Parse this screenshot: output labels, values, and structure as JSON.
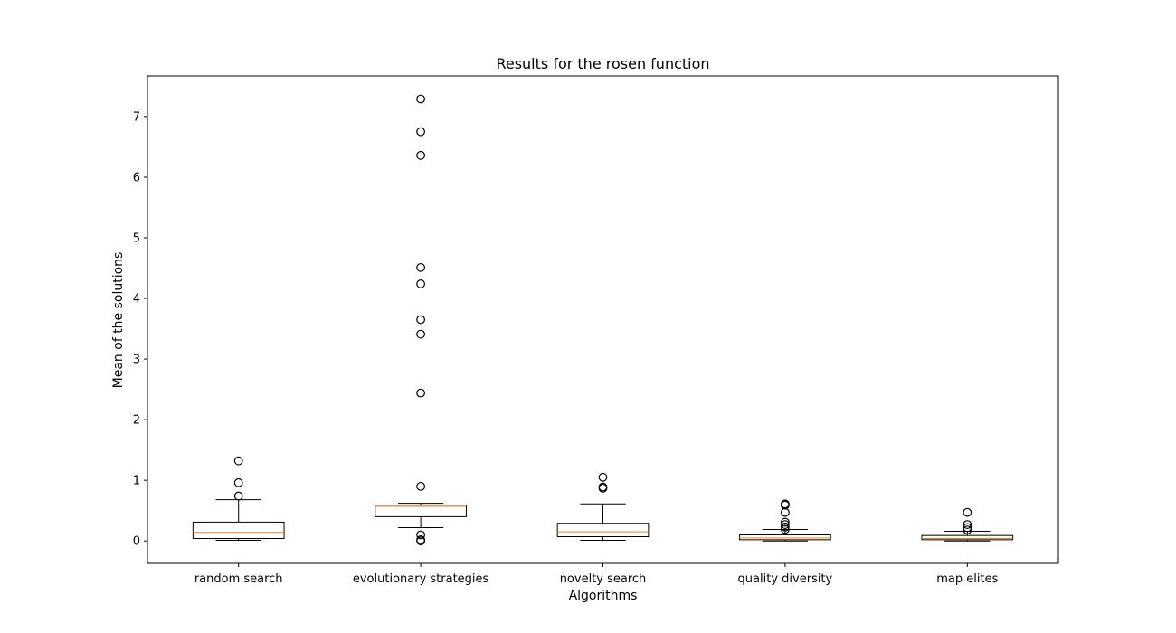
{
  "chart_data": {
    "type": "boxplot",
    "title": "Results for the rosen function",
    "xlabel": "Algorithms",
    "ylabel": "Mean of the solutions",
    "ylim": [
      -0.37,
      7.67
    ],
    "yticks": [
      0,
      1,
      2,
      3,
      4,
      5,
      6,
      7
    ],
    "grid": false,
    "colors": {
      "box": "#000000",
      "median": "#ff7f0e",
      "background": "#ffffff"
    },
    "categories": [
      "random search",
      "evolutionary strategies",
      "novelty search",
      "quality diversity",
      "map elites"
    ],
    "boxes": [
      {
        "label": "random search",
        "whisker_low": 0.01,
        "q1": 0.04,
        "median": 0.14,
        "q3": 0.31,
        "whisker_high": 0.68,
        "fliers": [
          0.74,
          0.96,
          1.32
        ]
      },
      {
        "label": "evolutionary strategies",
        "whisker_low": 0.22,
        "q1": 0.4,
        "median": 0.57,
        "q3": 0.59,
        "whisker_high": 0.62,
        "fliers": [
          0.0,
          0.02,
          0.1,
          0.9,
          2.44,
          3.41,
          3.65,
          4.24,
          4.51,
          6.36,
          6.75,
          7.29
        ]
      },
      {
        "label": "novelty search",
        "whisker_low": 0.01,
        "q1": 0.07,
        "median": 0.15,
        "q3": 0.29,
        "whisker_high": 0.61,
        "fliers": [
          0.87,
          0.89,
          1.05
        ]
      },
      {
        "label": "quality diversity",
        "whisker_low": 0.0,
        "q1": 0.02,
        "median": 0.05,
        "q3": 0.1,
        "whisker_high": 0.19,
        "fliers": [
          0.19,
          0.23,
          0.27,
          0.31,
          0.47,
          0.59,
          0.61
        ]
      },
      {
        "label": "map elites",
        "whisker_low": 0.0,
        "q1": 0.02,
        "median": 0.04,
        "q3": 0.09,
        "whisker_high": 0.16,
        "fliers": [
          0.18,
          0.22,
          0.27,
          0.47
        ]
      }
    ]
  }
}
